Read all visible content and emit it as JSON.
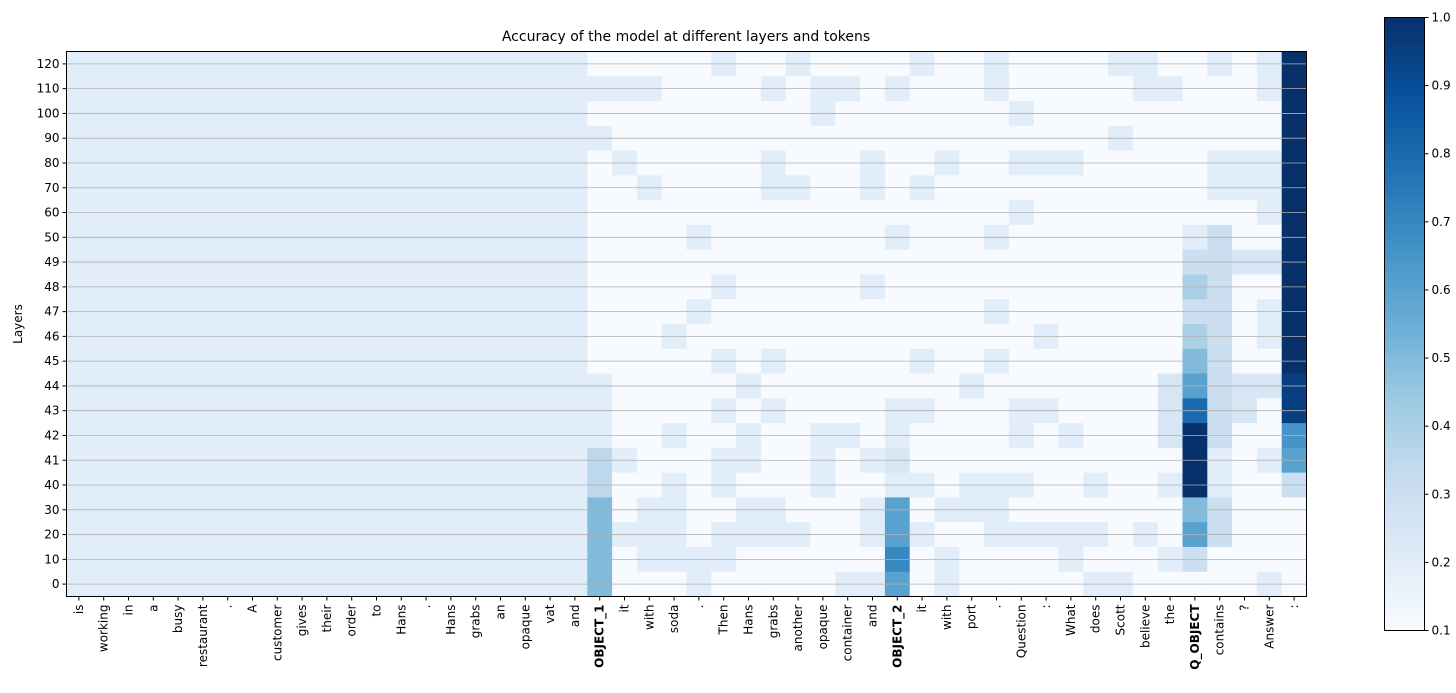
{
  "chart_data": {
    "type": "heatmap",
    "title": "Accuracy of the model at different layers and tokens",
    "ylabel": "Layers",
    "xlabel": "",
    "colormap": "Blues",
    "vmin": 0.1,
    "vmax": 1.0,
    "colorbar_ticks": [
      "0.1",
      "0.2",
      "0.3",
      "0.4",
      "0.5",
      "0.6",
      "0.7",
      "0.8",
      "0.9",
      "1.0"
    ],
    "grid": "horizontal",
    "layers": [
      "120",
      "110",
      "100",
      "90",
      "80",
      "70",
      "60",
      "50",
      "49",
      "48",
      "47",
      "46",
      "45",
      "44",
      "43",
      "42",
      "41",
      "40",
      "30",
      "20",
      "10",
      "0"
    ],
    "tokens": [
      "is",
      "working",
      "in",
      "a",
      "busy",
      "restaurant",
      ".",
      "A",
      "customer",
      "gives",
      "their",
      "order",
      "to",
      "Hans",
      ".",
      "Hans",
      "grabs",
      "an",
      "opaque",
      "vat",
      "and",
      "OBJECT_1",
      "it",
      "with",
      "soda",
      ".",
      "Then",
      "Hans",
      "grabs",
      "another",
      "opaque",
      "container",
      "and",
      "OBJECT_2",
      "it",
      "with",
      "port",
      ".",
      "Question",
      ":",
      "What",
      "does",
      "Scott",
      "believe",
      "the",
      "Q_OBJECT",
      "contains",
      "?",
      "Answer",
      ":"
    ],
    "bold_tokens": [
      "OBJECT_1",
      "OBJECT_2",
      "Q_OBJECT"
    ],
    "default_value": 0.1,
    "prefix_value": 0.2,
    "prefix_token_count": 21,
    "cells": {
      "120": {
        "26": 0.2,
        "29": 0.2,
        "34": 0.2,
        "37": 0.2,
        "42": 0.2,
        "43": 0.2,
        "46": 0.2,
        "48": 0.2,
        "49": 1.0
      },
      "110": {
        "21": 0.2,
        "22": 0.2,
        "23": 0.2,
        "28": 0.2,
        "30": 0.2,
        "31": 0.2,
        "33": 0.2,
        "37": 0.2,
        "43": 0.2,
        "44": 0.2,
        "48": 0.2,
        "49": 1.0
      },
      "100": {
        "30": 0.2,
        "38": 0.2,
        "49": 1.0
      },
      "90": {
        "21": 0.2,
        "42": 0.2,
        "49": 1.0
      },
      "80": {
        "22": 0.2,
        "28": 0.2,
        "32": 0.2,
        "35": 0.2,
        "38": 0.2,
        "39": 0.2,
        "40": 0.2,
        "46": 0.2,
        "47": 0.2,
        "48": 0.2,
        "49": 1.0
      },
      "70": {
        "23": 0.2,
        "28": 0.2,
        "29": 0.2,
        "32": 0.2,
        "34": 0.2,
        "46": 0.2,
        "47": 0.2,
        "48": 0.2,
        "49": 1.0
      },
      "60": {
        "38": 0.2,
        "48": 0.2,
        "49": 1.0
      },
      "50": {
        "25": 0.2,
        "33": 0.2,
        "37": 0.2,
        "45": 0.2,
        "46": 0.3,
        "49": 1.0
      },
      "49": {
        "45": 0.3,
        "46": 0.3,
        "47": 0.25,
        "48": 0.25,
        "49": 1.0
      },
      "48": {
        "26": 0.2,
        "32": 0.2,
        "45": 0.4,
        "46": 0.3,
        "49": 1.0
      },
      "47": {
        "25": 0.2,
        "37": 0.2,
        "45": 0.3,
        "46": 0.3,
        "48": 0.2,
        "49": 1.0
      },
      "46": {
        "24": 0.2,
        "39": 0.2,
        "45": 0.4,
        "46": 0.3,
        "48": 0.2,
        "49": 1.0
      },
      "45": {
        "26": 0.2,
        "28": 0.2,
        "34": 0.2,
        "37": 0.2,
        "45": 0.5,
        "46": 0.3,
        "49": 1.0
      },
      "44": {
        "21": 0.2,
        "27": 0.2,
        "36": 0.2,
        "44": 0.25,
        "45": 0.6,
        "46": 0.3,
        "47": 0.25,
        "48": 0.25,
        "49": 0.95
      },
      "43": {
        "21": 0.2,
        "26": 0.2,
        "28": 0.2,
        "33": 0.2,
        "34": 0.2,
        "38": 0.2,
        "39": 0.2,
        "44": 0.25,
        "45": 0.8,
        "46": 0.3,
        "47": 0.25,
        "49": 0.95
      },
      "42": {
        "21": 0.2,
        "24": 0.2,
        "27": 0.2,
        "30": 0.2,
        "31": 0.2,
        "33": 0.2,
        "38": 0.2,
        "40": 0.2,
        "44": 0.25,
        "45": 1.0,
        "46": 0.3,
        "49": 0.65
      },
      "41": {
        "21": 0.35,
        "22": 0.2,
        "26": 0.2,
        "27": 0.2,
        "30": 0.2,
        "32": 0.2,
        "33": 0.25,
        "45": 1.0,
        "46": 0.2,
        "48": 0.2,
        "49": 0.6
      },
      "40": {
        "21": 0.35,
        "24": 0.2,
        "26": 0.2,
        "30": 0.2,
        "33": 0.2,
        "34": 0.2,
        "36": 0.2,
        "37": 0.2,
        "38": 0.2,
        "41": 0.2,
        "44": 0.2,
        "45": 1.0,
        "46": 0.2,
        "49": 0.3
      },
      "30": {
        "21": 0.5,
        "23": 0.2,
        "24": 0.2,
        "27": 0.2,
        "28": 0.2,
        "32": 0.2,
        "33": 0.6,
        "35": 0.2,
        "36": 0.2,
        "37": 0.2,
        "45": 0.5,
        "46": 0.3
      },
      "20": {
        "21": 0.5,
        "22": 0.2,
        "23": 0.2,
        "24": 0.2,
        "26": 0.2,
        "27": 0.2,
        "28": 0.2,
        "29": 0.2,
        "32": 0.2,
        "33": 0.6,
        "34": 0.2,
        "37": 0.2,
        "38": 0.2,
        "39": 0.2,
        "40": 0.2,
        "41": 0.2,
        "43": 0.2,
        "45": 0.6,
        "46": 0.3
      },
      "10": {
        "21": 0.5,
        "23": 0.2,
        "24": 0.2,
        "25": 0.2,
        "26": 0.2,
        "33": 0.7,
        "35": 0.2,
        "40": 0.2,
        "44": 0.2,
        "45": 0.3
      },
      "0": {
        "21": 0.5,
        "25": 0.2,
        "31": 0.2,
        "32": 0.2,
        "33": 0.6,
        "35": 0.2,
        "41": 0.2,
        "42": 0.2,
        "48": 0.2
      }
    }
  }
}
